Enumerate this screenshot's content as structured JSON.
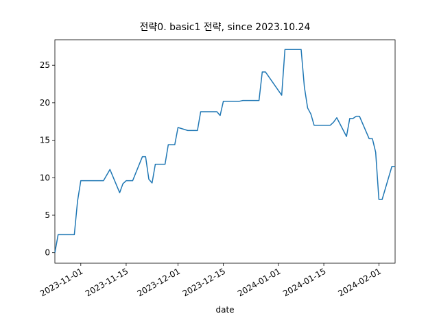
{
  "chart_data": {
    "type": "line",
    "title": "전략0. basic1 전략, since 2023.10.24",
    "x_label": "date",
    "x": [
      "2023-10-24",
      "2023-10-25",
      "2023-10-30",
      "2023-10-31",
      "2023-11-01",
      "2023-11-08",
      "2023-11-10",
      "2023-11-13",
      "2023-11-14",
      "2023-11-15",
      "2023-11-17",
      "2023-11-20",
      "2023-11-21",
      "2023-11-22",
      "2023-11-23",
      "2023-11-24",
      "2023-11-27",
      "2023-11-28",
      "2023-11-30",
      "2023-12-01",
      "2023-12-04",
      "2023-12-07",
      "2023-12-08",
      "2023-12-13",
      "2023-12-14",
      "2023-12-15",
      "2023-12-20",
      "2023-12-21",
      "2023-12-26",
      "2023-12-27",
      "2023-12-28",
      "2024-01-02",
      "2024-01-03",
      "2024-01-08",
      "2024-01-09",
      "2024-01-10",
      "2024-01-11",
      "2024-01-12",
      "2024-01-17",
      "2024-01-18",
      "2024-01-19",
      "2024-01-22",
      "2024-01-23",
      "2024-01-24",
      "2024-01-25",
      "2024-01-26",
      "2024-01-29",
      "2024-01-30",
      "2024-01-31",
      "2024-02-01",
      "2024-02-02",
      "2024-02-05",
      "2024-02-06"
    ],
    "series": [
      {
        "color": "#1f77b4",
        "values": [
          0,
          2.4,
          2.4,
          6.9,
          9.6,
          9.6,
          11.1,
          8.0,
          9.2,
          9.6,
          9.6,
          12.8,
          12.8,
          9.8,
          9.3,
          11.8,
          11.8,
          14.4,
          14.4,
          16.7,
          16.3,
          16.3,
          18.8,
          18.8,
          18.3,
          20.2,
          20.2,
          20.3,
          20.3,
          24.1,
          24.1,
          21.0,
          27.1,
          27.1,
          22.1,
          19.3,
          18.5,
          17.0,
          17.0,
          17.4,
          18.0,
          15.5,
          17.9,
          17.9,
          18.2,
          18.2,
          15.2,
          15.2,
          13.4,
          7.1,
          7.1,
          11.5,
          11.5
        ]
      }
    ],
    "xlim": [
      "2023-10-24",
      "2024-02-06"
    ],
    "xticks": [
      "2023-11-01",
      "2023-11-15",
      "2023-12-01",
      "2023-12-15",
      "2024-01-01",
      "2024-01-15",
      "2024-02-01"
    ],
    "ylim": [
      -1.4,
      28.4
    ],
    "yticks": [
      0,
      5,
      10,
      15,
      20,
      25
    ]
  }
}
